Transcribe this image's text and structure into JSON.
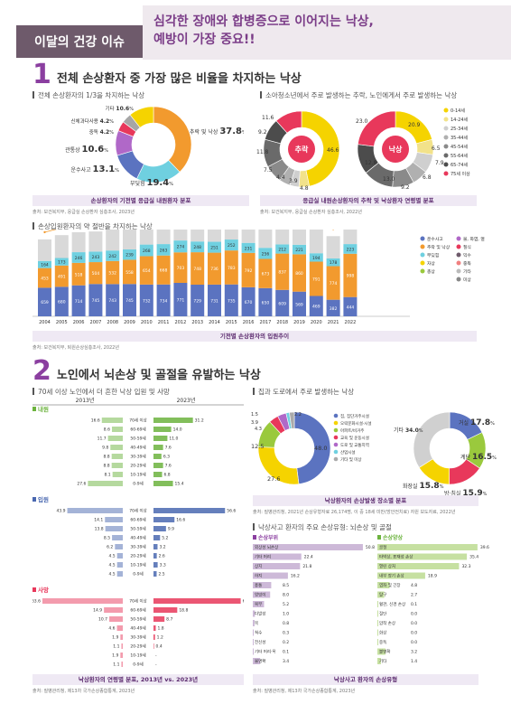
{
  "header": {
    "tab": "이달의 건강 이슈",
    "title_l1": "심각한 장애와 합병증으로 이어지는 낙상,",
    "title_l2": "예방이 가장 중요!!"
  },
  "s1": {
    "num": "1",
    "title": "전체 손상환자 중 가장 많은 비율을 차지하는 낙상"
  },
  "s2": {
    "num": "2",
    "title": "노인에서 뇌손상 및 골절을 유발하는 낙상"
  },
  "colors": {
    "fall": "#f29a2e",
    "yellow": "#f5d300",
    "purple": "#b068c8",
    "gray": "#a6a6a6",
    "red": "#e8385b",
    "teal": "#6fd0e0",
    "blue": "#5b73c0",
    "green": "#9ac93d"
  },
  "p1": {
    "subtitle": "전체 손상환자의 1/3을 차지하는 낙상",
    "caption": "손상환자의 기전별 응급실 내원환자 분포",
    "source": "출처: 보건복지부, 응급실 손상환자 심층조사, 2023년",
    "labels": [
      {
        "name": "추락 및 낙상",
        "value": "37.8"
      },
      {
        "name": "부딪힘",
        "value": "19.4"
      },
      {
        "name": "운수사고",
        "value": "13.1"
      },
      {
        "name": "관통상",
        "value": "10.6"
      },
      {
        "name": "중독",
        "value": "4.2"
      },
      {
        "name": "신체과다사용",
        "value": "4.2"
      },
      {
        "name": "기타",
        "value": "10.6"
      }
    ],
    "suffix": "%"
  },
  "p2": {
    "subtitle": "소아청소년에서 주로 발생하는 추락, 노인에게서 주로 발생하는 낙상",
    "caption": "응급실 내원손상환자의 추락 및 낙상환자 연령별 분포",
    "source": "출처: 보건복지부, 응급실 손상환자 심층조사, 2022년",
    "center_left": "추락",
    "center_right": "낙상",
    "left_values": [
      "46.6",
      "11.6",
      "9.2",
      "11.8",
      "7.5",
      "4.4",
      "3.9",
      "4.8"
    ],
    "right_values": [
      "20.9",
      "6.5",
      "7.9",
      "6.8",
      "9.2",
      "13.0",
      "12.8",
      "23.0"
    ],
    "legend": [
      "0-14세",
      "14-24세",
      "25-34세",
      "35-44세",
      "45-54세",
      "55-64세",
      "65-74세",
      "75세 이상"
    ]
  },
  "p3": {
    "subtitle": "손상입원환자의 약 절반을 차지하는 낙상",
    "caption": "기전별 손상환자의 입원추이",
    "source": "출처: 보건복지부, 퇴원손상심층조사, 2022년",
    "legend": [
      "운수사고",
      "추락 및 낙상",
      "부딪힘",
      "자상",
      "총상",
      "불, 화염, 열",
      "질식",
      "익수",
      "중독",
      "기타",
      "미상"
    ]
  },
  "p4": {
    "subtitle": "70세 이상 노인에서 더 흔한 낙상 입원 및 사망",
    "caption": "낙상환자의 연령별 분포, 2013년 vs. 2023년",
    "source": "출처: 질병관리청, 제13차 국가손상종합통계, 2023년",
    "col_left": "2013년",
    "col_right": "2023년",
    "groups": [
      "내원",
      "입원",
      "사망"
    ],
    "ages": [
      "70세 이상",
      "60-69세",
      "50-59세",
      "40-49세",
      "30-39세",
      "20-29세",
      "10-19세",
      "0-9세"
    ],
    "left": [
      [
        "16.6",
        "8.6",
        "11.7",
        "9.8",
        "8.8",
        "8.8",
        "8.1",
        "27.6"
      ],
      [
        "43.9",
        "14.1",
        "13.8",
        "8.5",
        "6.2",
        "4.5",
        "4.5",
        "4.5"
      ],
      [
        "63.6",
        "14.9",
        "10.7",
        "4.6",
        "1.9",
        "1.1",
        "1.9",
        "1.1"
      ]
    ],
    "right": [
      [
        "31.2",
        "14.0",
        "11.0",
        "7.6",
        "6.3",
        "7.6",
        "6.8",
        "15.4"
      ],
      [
        "56.6",
        "16.6",
        "9.9",
        "5.2",
        "3.2",
        "2.6",
        "3.3",
        "2.5"
      ],
      [
        "69.0",
        "18.8",
        "8.7",
        "1.8",
        "1.2",
        "0.4",
        "-",
        "-"
      ]
    ]
  },
  "p5": {
    "subtitle": "집과 도로에서 주로 발생하는 낙상",
    "caption": "낙상환자의 손상발생 장소별 분포",
    "source": "출처: 질병관리청, 2021년 손상유형자료 26,174명, 이 중 18세 미만(방안전치료) 자원 보도자료, 2022년",
    "left_labels": [
      "48.0",
      "27.6",
      "12.5",
      "4.3",
      "3.9",
      "1.5",
      "2.2"
    ],
    "legend": [
      "집, 집단거주시설",
      "오락문화시설·시설",
      "아파트/비거주",
      "교육 및 운동시설",
      "도로 및 교통지역",
      "산업시설",
      "기타 및 미상"
    ],
    "right_labels": [
      {
        "name": "거실",
        "value": "17.8"
      },
      {
        "name": "계단",
        "value": "16.5"
      },
      {
        "name": "방·침실",
        "value": "15.9"
      },
      {
        "name": "화장실",
        "value": "15.8"
      },
      {
        "name": "기타",
        "value": "34.0"
      }
    ],
    "suffix": "%"
  },
  "p6": {
    "subtitle": "낙상사고 환자의 주요 손상유형: 뇌손상 및 골절",
    "caption": "낙상사고 환자의 손상유형",
    "source": "출처: 질병관리청, 제13차 국가손상종합통계, 2023년",
    "left_head": "손상부위",
    "right_head": "손상양상",
    "left_rows": [
      [
        "외상성 뇌손상",
        "50.8"
      ],
      [
        "기타 머리",
        "22.4"
      ],
      [
        "상지",
        "21.8"
      ],
      [
        "하지",
        "16.2"
      ],
      [
        "흉통",
        "8.5"
      ],
      [
        "엉덩이",
        "8.0"
      ],
      [
        "복부",
        "5.2"
      ],
      [
        "다발성",
        "1.0"
      ],
      [
        "목",
        "0.8"
      ],
      [
        "척수",
        "0.3"
      ],
      [
        "전신성",
        "0.2"
      ],
      [
        "기타 머리·목",
        "0.1"
      ],
      [
        "불명확",
        "3.4"
      ]
    ],
    "right_rows": [
      [
        "골절",
        "39.6"
      ],
      [
        "타박상, 표재성 손상",
        "35.4"
      ],
      [
        "열린 상처",
        "32.3"
      ],
      [
        "내부 장기 손상",
        "18.9"
      ],
      [
        "염좌 및 긴장",
        "4.8"
      ],
      [
        "탈구",
        "2.7"
      ],
      [
        "혈관, 신경 손상",
        "0.1"
      ],
      [
        "절단",
        "0.0"
      ],
      [
        "압착 손상",
        "0.0"
      ],
      [
        "화상",
        "0.0"
      ],
      [
        "중독",
        "0.0"
      ],
      [
        "불명확",
        "3.2"
      ],
      [
        "기타",
        "1.4"
      ]
    ]
  }
}
